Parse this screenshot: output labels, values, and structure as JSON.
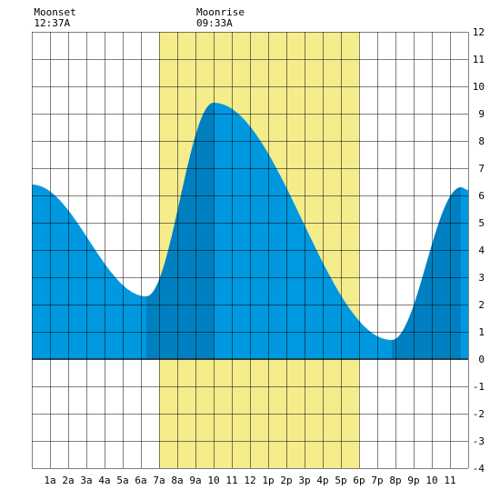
{
  "chart_data": {
    "type": "area",
    "title": "",
    "xlabel": "",
    "ylabel": "",
    "x_tick_labels": [
      "1a",
      "2a",
      "3a",
      "4a",
      "5a",
      "6a",
      "7a",
      "8a",
      "9a",
      "10",
      "11",
      "12",
      "1p",
      "2p",
      "3p",
      "4p",
      "5p",
      "6p",
      "7p",
      "8p",
      "9p",
      "10",
      "11"
    ],
    "y_tick_labels": [
      "12",
      "11",
      "10",
      "9",
      "8",
      "7",
      "6",
      "5",
      "4",
      "3",
      "2",
      "1",
      "0",
      "-1",
      "-2",
      "-3",
      "-4"
    ],
    "xlim": [
      0,
      24
    ],
    "ylim": [
      -4,
      12
    ],
    "grid": true,
    "daylight": {
      "start": 7.0,
      "end": 18.0
    },
    "moon_events": [
      {
        "name": "Moonset",
        "time": "12:37A",
        "hour": 0.62
      },
      {
        "name": "Moonrise",
        "time": "09:33A",
        "hour": 9.55
      }
    ],
    "tide_extremes": [
      {
        "hour": 0.0,
        "height": 6.4
      },
      {
        "hour": 6.3,
        "height": 2.3
      },
      {
        "hour": 10.0,
        "height": 9.4
      },
      {
        "hour": 19.8,
        "height": 0.7
      },
      {
        "hour": 23.6,
        "height": 6.3
      },
      {
        "hour": 24.0,
        "height": 6.2
      }
    ],
    "dark_bands": [
      {
        "start": 6.3,
        "end": 10.0
      },
      {
        "start": 19.8,
        "end": 23.6
      }
    ],
    "colors": {
      "tide": "#0099e0",
      "tide_dark": "#0080c0",
      "daylight": "#f5ec8c",
      "grid": "#000000",
      "background": "#ffffff"
    }
  }
}
